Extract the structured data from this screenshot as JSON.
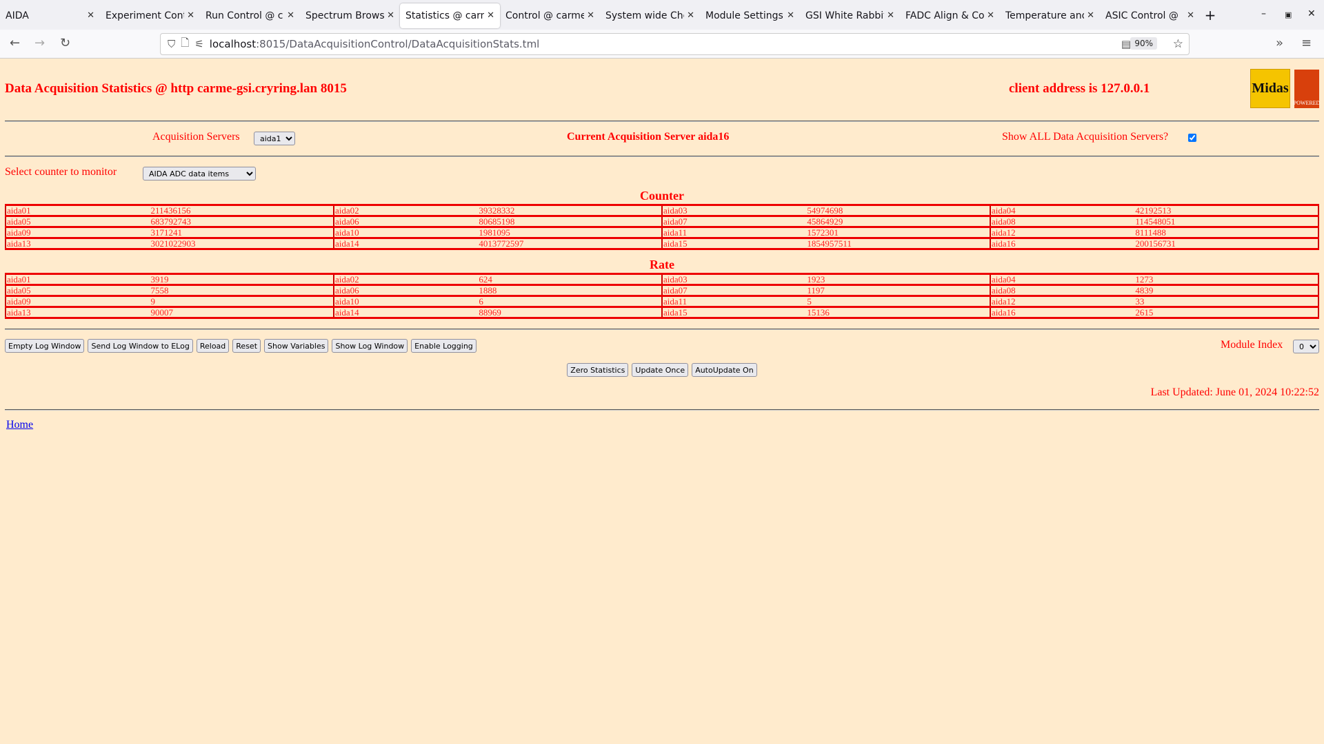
{
  "browser": {
    "tabs": [
      "AIDA",
      "Experiment Cont",
      "Run Control @ c",
      "Spectrum Brows",
      "Statistics @ carm",
      "Control @ carme",
      "System wide Che",
      "Module Settings",
      "GSI White Rabbit",
      "FADC Align & Co",
      "Temperature and",
      "ASIC Control @"
    ],
    "active_tab": 4,
    "url_host": "localhost",
    "url_path": ":8015/DataAcquisitionControl/DataAcquisitionStats.tml",
    "zoom": "90%"
  },
  "header": {
    "title": "Data Acquisition Statistics @ http carme-gsi.cryring.lan 8015",
    "client": "client address is 127.0.0.1",
    "logo_midas": "Midas",
    "logo_tcl": "TCL POWERED"
  },
  "servers": {
    "label": "Acquisition Servers",
    "selected": "aida16",
    "current": "Current Acquisition Server aida16",
    "show_all_label": "Show ALL Data Acquisition Servers?",
    "show_all_checked": true
  },
  "counter_select": {
    "label": "Select counter to monitor",
    "selected": "AIDA ADC data items"
  },
  "counter": {
    "title": "Counter",
    "rows": [
      [
        [
          "aida01",
          "211436156"
        ],
        [
          "aida02",
          "39328332"
        ],
        [
          "aida03",
          "54974698"
        ],
        [
          "aida04",
          "42192513"
        ]
      ],
      [
        [
          "aida05",
          "683792743"
        ],
        [
          "aida06",
          "80685198"
        ],
        [
          "aida07",
          "45864929"
        ],
        [
          "aida08",
          "114548051"
        ]
      ],
      [
        [
          "aida09",
          "3171241"
        ],
        [
          "aida10",
          "1981095"
        ],
        [
          "aida11",
          "1572301"
        ],
        [
          "aida12",
          "8111488"
        ]
      ],
      [
        [
          "aida13",
          "3021022903"
        ],
        [
          "aida14",
          "4013772597"
        ],
        [
          "aida15",
          "1854957511"
        ],
        [
          "aida16",
          "200156731"
        ]
      ]
    ]
  },
  "rate": {
    "title": "Rate",
    "rows": [
      [
        [
          "aida01",
          "3919"
        ],
        [
          "aida02",
          "624"
        ],
        [
          "aida03",
          "1923"
        ],
        [
          "aida04",
          "1273"
        ]
      ],
      [
        [
          "aida05",
          "7558"
        ],
        [
          "aida06",
          "1888"
        ],
        [
          "aida07",
          "1197"
        ],
        [
          "aida08",
          "4839"
        ]
      ],
      [
        [
          "aida09",
          "9"
        ],
        [
          "aida10",
          "6"
        ],
        [
          "aida11",
          "5"
        ],
        [
          "aida12",
          "33"
        ]
      ],
      [
        [
          "aida13",
          "90007"
        ],
        [
          "aida14",
          "88969"
        ],
        [
          "aida15",
          "15136"
        ],
        [
          "aida16",
          "2615"
        ]
      ]
    ]
  },
  "buttons": {
    "empty_log": "Empty Log Window",
    "send_log": "Send Log Window to ELog",
    "reload": "Reload",
    "reset": "Reset",
    "show_vars": "Show Variables",
    "show_log": "Show Log Window",
    "enable_logging": "Enable Logging",
    "zero_stats": "Zero Statistics",
    "update_once": "Update Once",
    "autoupdate": "AutoUpdate On"
  },
  "module_index": {
    "label": "Module Index",
    "selected": "0"
  },
  "last_updated": "Last Updated: June 01, 2024 10:22:52",
  "home": "Home"
}
